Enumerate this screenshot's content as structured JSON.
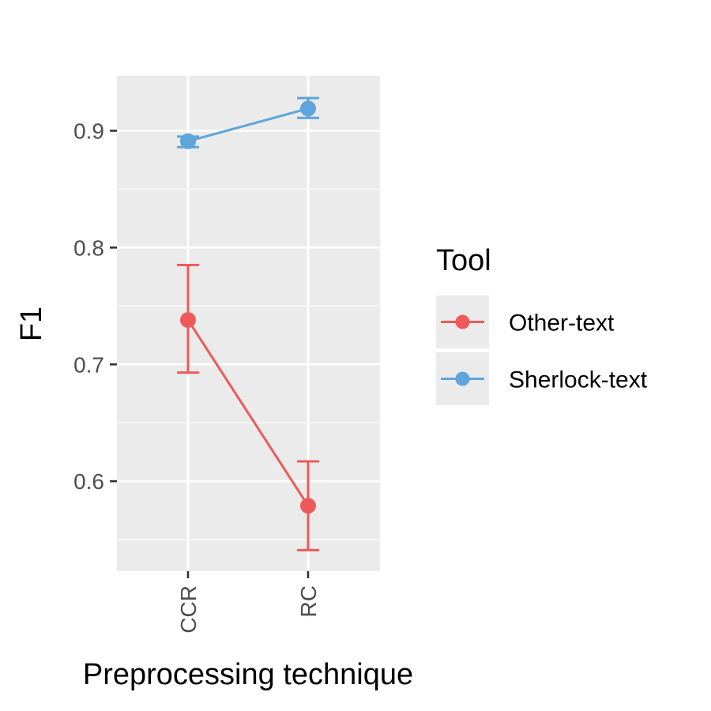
{
  "chart_data": {
    "type": "line",
    "xlabel": "Preprocessing technique",
    "ylabel": "F1",
    "categories": [
      "CCR",
      "RC"
    ],
    "ylim": [
      0.523,
      0.947
    ],
    "yticks": [
      0.6,
      0.7,
      0.8,
      0.9
    ],
    "ytick_labels": [
      "0.6",
      "0.7",
      "0.8",
      "0.9"
    ],
    "grid": true,
    "legend": {
      "title": "Tool",
      "position": "right"
    },
    "series": [
      {
        "name": "Other-text",
        "color": "#EE5A5A",
        "values": [
          0.738,
          0.579
        ],
        "error_low": [
          0.693,
          0.541
        ],
        "error_high": [
          0.785,
          0.617
        ]
      },
      {
        "name": "Sherlock-text",
        "color": "#5DA5DA",
        "values": [
          0.891,
          0.919
        ],
        "error_low": [
          0.886,
          0.911
        ],
        "error_high": [
          0.895,
          0.928
        ]
      }
    ]
  }
}
